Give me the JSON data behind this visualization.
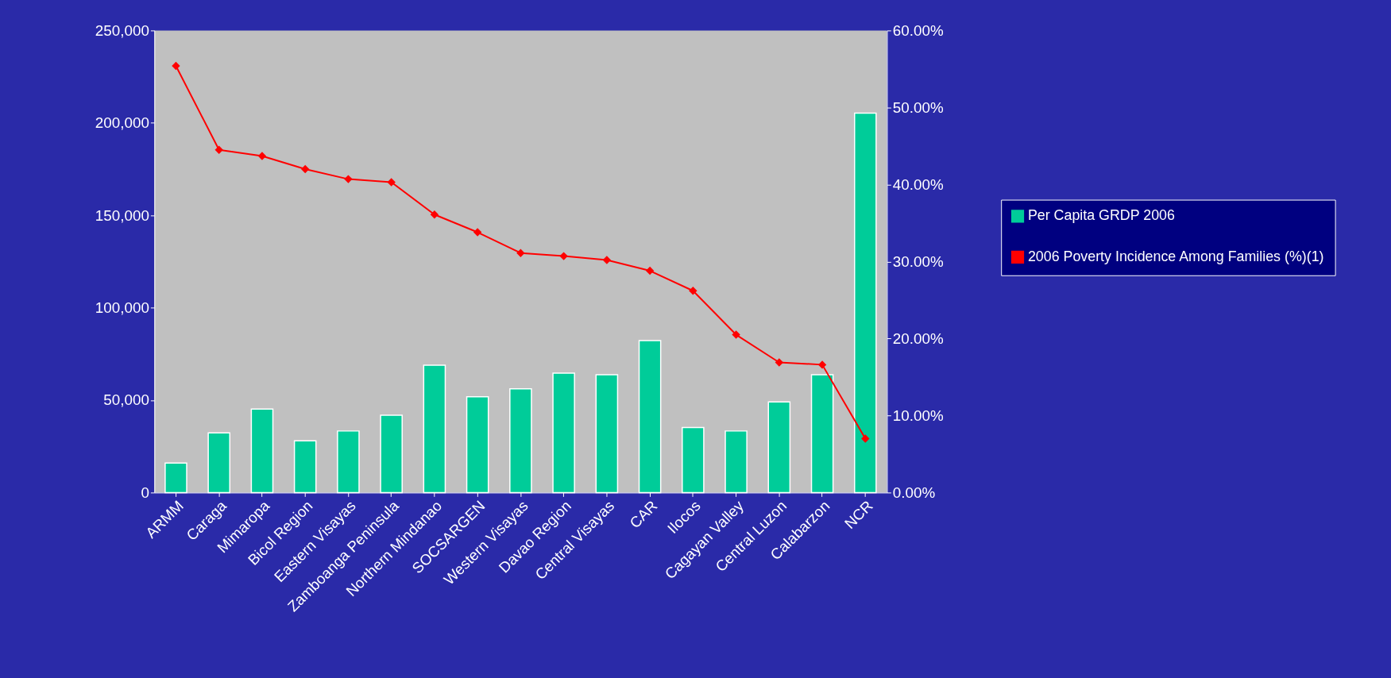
{
  "chart_data": {
    "type": "bar",
    "categories": [
      "ARMM",
      "Caraga",
      "Mimaropa",
      "Bicol Region",
      "Eastern Visayas",
      "Zamboanga Peninsula",
      "Northern Mindanao",
      "SOCSARGEN",
      "Western Visayas",
      "Davao Region",
      "Central Visayas",
      "CAR",
      "Ilocos",
      "Cagayan Valley",
      "Central Luzon",
      "Calabarzon",
      "NCR"
    ],
    "series": [
      {
        "name": "Per Capita GRDP 2006",
        "color": "#00cc99",
        "values": [
          16000,
          32300,
          45200,
          28000,
          33300,
          41800,
          68900,
          51800,
          56100,
          64600,
          63700,
          82200,
          35200,
          33300,
          49000,
          63700,
          205300
        ]
      },
      {
        "name": "2006 Poverty Incidence Among Families (%)(1)",
        "type": "line",
        "axis": "y2",
        "color": "#ff0000",
        "values": [
          55.4,
          44.5,
          43.7,
          42.0,
          40.7,
          40.3,
          36.1,
          33.8,
          31.1,
          30.7,
          30.2,
          28.8,
          26.2,
          20.5,
          16.9,
          16.6,
          7.0
        ]
      }
    ],
    "ylim": [
      0,
      250000
    ],
    "yticks": [
      {
        "value": 0,
        "label": "0"
      },
      {
        "value": 50000,
        "label": "50,000"
      },
      {
        "value": 100000,
        "label": "100,000"
      },
      {
        "value": 150000,
        "label": "150,000"
      },
      {
        "value": 200000,
        "label": "200,000"
      },
      {
        "value": 250000,
        "label": "250,000"
      }
    ],
    "y2lim": [
      0,
      60
    ],
    "y2ticks": [
      {
        "value": 0,
        "label": "0.00%"
      },
      {
        "value": 10,
        "label": "10.00%"
      },
      {
        "value": 20,
        "label": "20.00%"
      },
      {
        "value": 30,
        "label": "30.00%"
      },
      {
        "value": 40,
        "label": "40.00%"
      },
      {
        "value": 50,
        "label": "50.00%"
      },
      {
        "value": 60,
        "label": "60.00%"
      }
    ],
    "grid": false,
    "legend": "right",
    "marker": "diamond",
    "line_style": "solid"
  }
}
